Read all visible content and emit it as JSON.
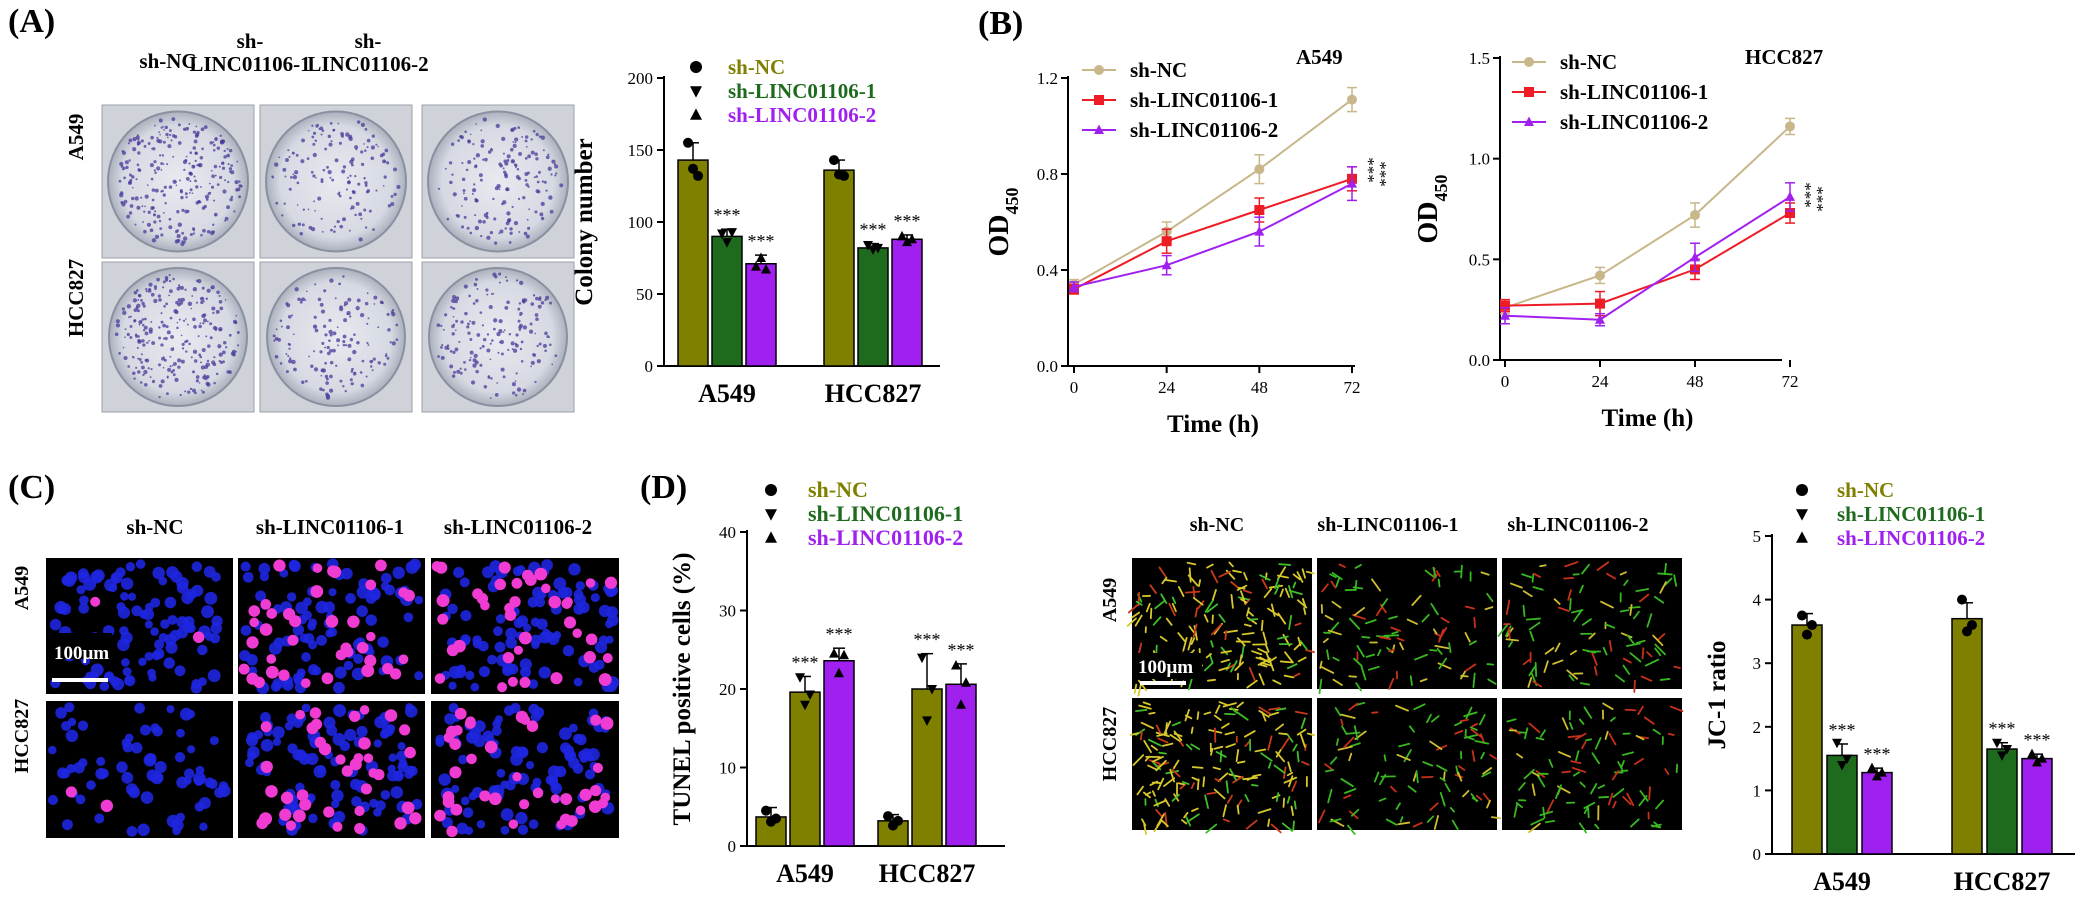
{
  "panels": {
    "A": {
      "label": "(A)",
      "columns": [
        "sh-NC",
        "sh-\nLINC01106-1",
        "sh-\nLINC01106-2"
      ],
      "rows": [
        "A549",
        "HCC827"
      ],
      "chart": {
        "type": "bar",
        "ylabel": "Colony number",
        "ylim": [
          0,
          200
        ],
        "yticks": [
          0,
          50,
          100,
          150,
          200
        ],
        "categories": [
          "A549",
          "HCC827"
        ],
        "series": [
          {
            "name": "sh-NC",
            "color": "#808000",
            "marker": "circle",
            "values": [
              143,
              136
            ],
            "err": [
              12,
              7
            ],
            "points": [
              [
                155,
                137,
                132
              ],
              [
                143,
                133,
                132
              ]
            ],
            "sig": [
              "",
              ""
            ]
          },
          {
            "name": "sh-LINC01106-1",
            "color": "#1e6b1e",
            "marker": "triangle-down",
            "values": [
              90,
              82
            ],
            "err": [
              5,
              3
            ],
            "points": [
              [
                92,
                86,
                93
              ],
              [
                84,
                81,
                82
              ]
            ],
            "sig": [
              "***",
              "***"
            ]
          },
          {
            "name": "sh-LINC01106-2",
            "color": "#a020f0",
            "marker": "triangle-up",
            "values": [
              71,
              88
            ],
            "err": [
              6,
              3
            ],
            "points": [
              [
                69,
                75,
                67
              ],
              [
                90,
                86,
                88
              ]
            ],
            "sig": [
              "***",
              "***"
            ]
          }
        ]
      }
    },
    "B": {
      "label": "(B)",
      "charts": [
        {
          "type": "line",
          "title": "A549",
          "xlabel": "Time (h)",
          "ylabel_main": "OD",
          "ylabel_sub": "450",
          "x": [
            0,
            24,
            48,
            72
          ],
          "xticks": [
            0,
            24,
            48,
            72
          ],
          "ylim": [
            0,
            1.2
          ],
          "yticks": [
            0.0,
            0.4,
            0.8,
            1.2
          ],
          "yticklabels": [
            "0.0",
            "0.4",
            "0.8",
            "1.2"
          ],
          "series": [
            {
              "name": "sh-NC",
              "color": "#c8b78a",
              "marker": "circle",
              "values": [
                0.34,
                0.56,
                0.82,
                1.11
              ],
              "err": [
                0.02,
                0.04,
                0.06,
                0.05
              ]
            },
            {
              "name": "sh-LINC01106-1",
              "color": "#ee1c25",
              "marker": "square",
              "values": [
                0.32,
                0.52,
                0.65,
                0.78
              ],
              "err": [
                0.02,
                0.05,
                0.05,
                0.05
              ]
            },
            {
              "name": "sh-LINC01106-2",
              "color": "#a020f0",
              "marker": "triangle-up",
              "values": [
                0.33,
                0.42,
                0.56,
                0.76
              ],
              "err": [
                0.02,
                0.04,
                0.06,
                0.07
              ]
            }
          ],
          "sig": [
            "***",
            "***"
          ]
        },
        {
          "type": "line",
          "title": "HCC827",
          "xlabel": "Time (h)",
          "ylabel_main": "OD",
          "ylabel_sub": "450",
          "x": [
            0,
            24,
            48,
            72
          ],
          "xticks": [
            0,
            24,
            48,
            72
          ],
          "ylim": [
            0,
            1.5
          ],
          "yticks": [
            0.0,
            0.5,
            1.0,
            1.5
          ],
          "yticklabels": [
            "0.0",
            "0.5",
            "1.0",
            "1.5"
          ],
          "series": [
            {
              "name": "sh-NC",
              "color": "#c8b78a",
              "marker": "circle",
              "values": [
                0.26,
                0.42,
                0.72,
                1.16
              ],
              "err": [
                0.03,
                0.04,
                0.06,
                0.04
              ]
            },
            {
              "name": "sh-LINC01106-1",
              "color": "#ee1c25",
              "marker": "square",
              "values": [
                0.27,
                0.28,
                0.45,
                0.73
              ],
              "err": [
                0.03,
                0.06,
                0.05,
                0.05
              ]
            },
            {
              "name": "sh-LINC01106-2",
              "color": "#a020f0",
              "marker": "triangle-up",
              "values": [
                0.22,
                0.2,
                0.51,
                0.81
              ],
              "err": [
                0.04,
                0.03,
                0.07,
                0.07
              ]
            }
          ],
          "sig": [
            "***",
            "***"
          ]
        }
      ]
    },
    "C": {
      "label": "(C)",
      "columns": [
        "sh-NC",
        "sh-LINC01106-1",
        "sh-LINC01106-2"
      ],
      "rows": [
        "A549",
        "HCC827"
      ],
      "scalebar": "100μm"
    },
    "D": {
      "label": "(D)",
      "tunel": {
        "type": "bar",
        "ylabel": "TUNEL positive cells (%)",
        "ylim": [
          0,
          40
        ],
        "yticks": [
          0,
          10,
          20,
          30,
          40
        ],
        "categories": [
          "A549",
          "HCC827"
        ],
        "legend": [
          {
            "name": "sh-NC",
            "color": "#808000",
            "marker": "circle"
          },
          {
            "name": "sh-LINC01106-1",
            "color": "#1e6b1e",
            "marker": "triangle-down"
          },
          {
            "name": "sh-LINC01106-2",
            "color": "#a020f0",
            "marker": "triangle-up"
          }
        ],
        "series": [
          {
            "name": "sh-NC",
            "color": "#808000",
            "marker": "circle",
            "values": [
              3.7,
              3.2
            ],
            "err": [
              1.2,
              0.8
            ],
            "points": [
              [
                4.5,
                3.1,
                3.5
              ],
              [
                3.8,
                2.6,
                3.2
              ]
            ],
            "sig": [
              "",
              ""
            ]
          },
          {
            "name": "sh-LINC01106-1",
            "color": "#808000",
            "marker": "triangle-down",
            "values": [
              19.6,
              20.0
            ],
            "err": [
              2.0,
              4.5
            ],
            "points": [
              [
                21.5,
                18.0,
                19.3
              ],
              [
                24.0,
                16.0,
                20.0
              ]
            ],
            "sig": [
              "***",
              "***"
            ]
          },
          {
            "name": "sh-LINC01106-2",
            "color": "#a020f0",
            "marker": "triangle-up",
            "values": [
              23.6,
              20.6
            ],
            "err": [
              1.6,
              2.6
            ],
            "points": [
              [
                24.5,
                22.0,
                24.3
              ],
              [
                23.0,
                18.0,
                20.8
              ]
            ],
            "sig": [
              "***",
              "***"
            ]
          }
        ]
      },
      "jc1_images": {
        "columns": [
          "sh-NC",
          "sh-LINC01106-1",
          "sh-LINC01106-2"
        ],
        "rows": [
          "A549",
          "HCC827"
        ],
        "scalebar": "100μm"
      },
      "jc1": {
        "type": "bar",
        "ylabel": "JC-1 ratio",
        "ylim": [
          0,
          5
        ],
        "yticks": [
          0,
          1,
          2,
          3,
          4,
          5
        ],
        "categories": [
          "A549",
          "HCC827"
        ],
        "series": [
          {
            "name": "sh-NC",
            "color": "#808000",
            "marker": "circle",
            "values": [
              3.6,
              3.7
            ],
            "err": [
              0.18,
              0.25
            ],
            "points": [
              [
                3.75,
                3.45,
                3.6
              ],
              [
                4.0,
                3.5,
                3.6
              ]
            ],
            "sig": [
              "",
              ""
            ]
          },
          {
            "name": "sh-LINC01106-1",
            "color": "#1e6b1e",
            "marker": "triangle-down",
            "values": [
              1.55,
              1.65
            ],
            "err": [
              0.18,
              0.1
            ],
            "points": [
              [
                1.75,
                1.4,
                1.5
              ],
              [
                1.75,
                1.55,
                1.65
              ]
            ],
            "sig": [
              "***",
              "***"
            ]
          },
          {
            "name": "sh-LINC01106-2",
            "color": "#a020f0",
            "marker": "triangle-up",
            "values": [
              1.28,
              1.5
            ],
            "err": [
              0.07,
              0.07
            ],
            "points": [
              [
                1.35,
                1.22,
                1.28
              ],
              [
                1.57,
                1.44,
                1.5
              ]
            ],
            "sig": [
              "***",
              "***"
            ]
          }
        ]
      }
    }
  }
}
